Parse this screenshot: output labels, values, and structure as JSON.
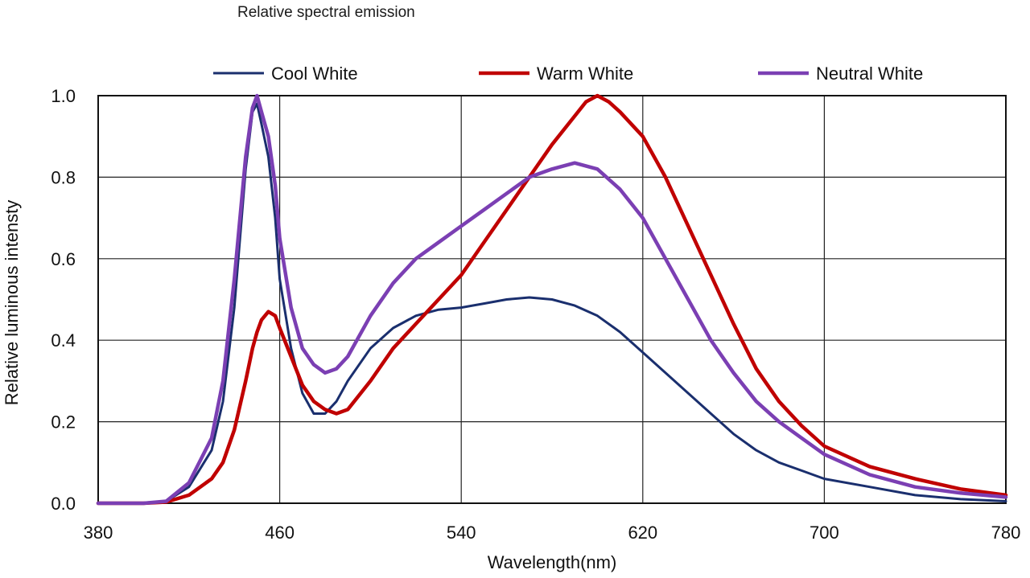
{
  "chart_data": {
    "type": "line",
    "title": "Relative spectral emission",
    "xlabel": "Wavelength(nm)",
    "ylabel": "Relative luminous intensty",
    "xlim": [
      380,
      780
    ],
    "ylim": [
      0,
      1.0
    ],
    "xticks": [
      380,
      460,
      540,
      620,
      700,
      780
    ],
    "xtick_labels": [
      "380",
      "460",
      "540",
      "620",
      "700",
      "780"
    ],
    "yticks": [
      0.0,
      0.2,
      0.4,
      0.6,
      0.8,
      1.0
    ],
    "ytick_labels": [
      "0.0",
      "0.2",
      "0.4",
      "0.6",
      "0.8",
      "1.0"
    ],
    "grid": true,
    "legend_position": "top",
    "series": [
      {
        "name": "Cool White",
        "color": "#1a2f6e",
        "x": [
          380,
          400,
          410,
          420,
          430,
          435,
          440,
          445,
          448,
          450,
          452,
          455,
          458,
          460,
          465,
          470,
          475,
          480,
          485,
          490,
          500,
          510,
          520,
          530,
          540,
          550,
          560,
          570,
          580,
          590,
          600,
          610,
          620,
          630,
          640,
          650,
          660,
          670,
          680,
          690,
          700,
          720,
          740,
          760,
          780
        ],
        "y": [
          0,
          0,
          0.005,
          0.04,
          0.13,
          0.25,
          0.48,
          0.82,
          0.96,
          0.98,
          0.93,
          0.85,
          0.7,
          0.55,
          0.38,
          0.27,
          0.22,
          0.22,
          0.25,
          0.3,
          0.38,
          0.43,
          0.46,
          0.475,
          0.48,
          0.49,
          0.5,
          0.505,
          0.5,
          0.485,
          0.46,
          0.42,
          0.37,
          0.32,
          0.27,
          0.22,
          0.17,
          0.13,
          0.1,
          0.08,
          0.06,
          0.04,
          0.02,
          0.01,
          0.005
        ]
      },
      {
        "name": "Warm White",
        "color": "#c00000",
        "x": [
          380,
          400,
          410,
          420,
          430,
          435,
          440,
          445,
          448,
          450,
          452,
          455,
          458,
          460,
          465,
          470,
          475,
          480,
          485,
          490,
          500,
          510,
          520,
          530,
          540,
          550,
          560,
          570,
          580,
          590,
          595,
          600,
          605,
          610,
          620,
          630,
          640,
          650,
          660,
          670,
          680,
          690,
          700,
          720,
          740,
          760,
          780
        ],
        "y": [
          0,
          0,
          0.003,
          0.02,
          0.06,
          0.1,
          0.18,
          0.3,
          0.38,
          0.42,
          0.45,
          0.47,
          0.46,
          0.43,
          0.36,
          0.29,
          0.25,
          0.23,
          0.22,
          0.23,
          0.3,
          0.38,
          0.44,
          0.5,
          0.56,
          0.64,
          0.72,
          0.8,
          0.88,
          0.95,
          0.985,
          1.0,
          0.985,
          0.96,
          0.9,
          0.8,
          0.68,
          0.56,
          0.44,
          0.33,
          0.25,
          0.19,
          0.14,
          0.09,
          0.06,
          0.035,
          0.02
        ]
      },
      {
        "name": "Neutral White",
        "color": "#7b3fb3",
        "x": [
          380,
          400,
          410,
          420,
          430,
          435,
          440,
          445,
          448,
          450,
          452,
          455,
          458,
          460,
          465,
          470,
          475,
          480,
          485,
          490,
          500,
          510,
          520,
          530,
          540,
          550,
          560,
          570,
          580,
          590,
          600,
          610,
          620,
          630,
          640,
          650,
          660,
          670,
          680,
          690,
          700,
          720,
          740,
          760,
          780
        ],
        "y": [
          0,
          0,
          0.005,
          0.05,
          0.16,
          0.3,
          0.55,
          0.85,
          0.97,
          1.0,
          0.96,
          0.9,
          0.78,
          0.65,
          0.48,
          0.38,
          0.34,
          0.32,
          0.33,
          0.36,
          0.46,
          0.54,
          0.6,
          0.64,
          0.68,
          0.72,
          0.76,
          0.8,
          0.82,
          0.835,
          0.82,
          0.77,
          0.7,
          0.6,
          0.5,
          0.4,
          0.32,
          0.25,
          0.2,
          0.16,
          0.12,
          0.07,
          0.04,
          0.025,
          0.015
        ]
      }
    ]
  }
}
